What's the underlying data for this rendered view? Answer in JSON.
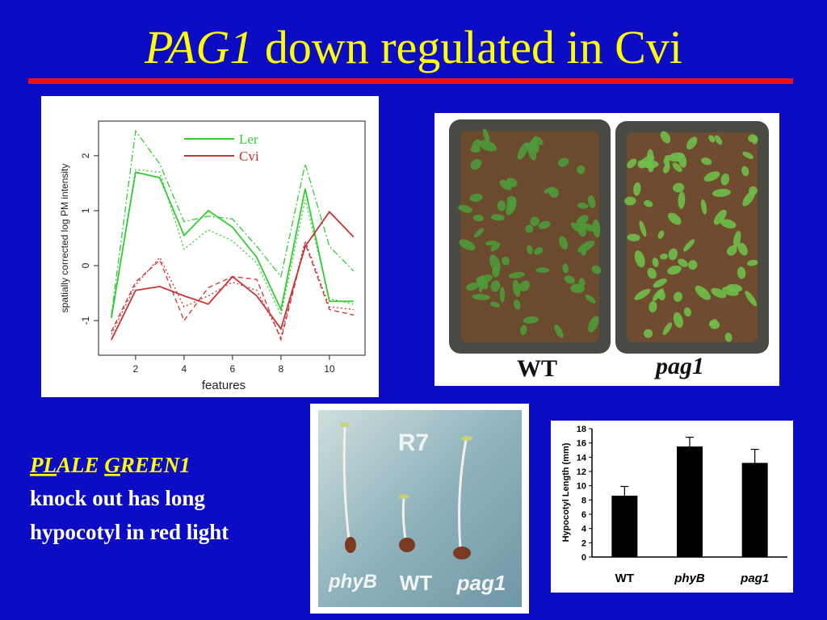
{
  "slide": {
    "title_italic": "PAG1",
    "title_rest": "down regulated in Cvi",
    "note_first_line": [
      {
        "text": "PL",
        "underline": true
      },
      {
        "text": "ALE ",
        "underline": false
      },
      {
        "text": "G",
        "underline": true
      },
      {
        "text": "REEN1",
        "underline": false
      }
    ],
    "note_lines": [
      "knock out has long",
      "hypocotyl in red light"
    ]
  },
  "photos": [
    {
      "labels": [
        {
          "text": "WT",
          "italic": false
        },
        {
          "text": "pag1",
          "italic": true
        }
      ]
    },
    {
      "labels": [
        {
          "text": "R7",
          "italic": false
        },
        {
          "text": "phyB",
          "italic": true
        },
        {
          "text": "WT",
          "italic": false
        },
        {
          "text": "pag1",
          "italic": true
        }
      ]
    }
  ],
  "chart_data": [
    {
      "type": "line",
      "x_label": "features",
      "y_label": "spatially corrected log PM intensity",
      "x": [
        1,
        2,
        3,
        4,
        5,
        6,
        7,
        8,
        9,
        10,
        11
      ],
      "xlim": [
        0.47,
        11.47
      ],
      "ylim": [
        -1.63,
        2.63
      ],
      "xticks": [
        2,
        4,
        6,
        8,
        10
      ],
      "yticks": [
        -1,
        0,
        1,
        2
      ],
      "series": [
        {
          "name": "Ler",
          "color": "#33cc33",
          "lines": [
            {
              "dash": "solid",
              "values": [
                -0.95,
                1.7,
                1.6,
                0.55,
                1.0,
                0.7,
                0.15,
                -0.8,
                1.4,
                -0.65,
                -0.65
              ]
            },
            {
              "dash": "dashdot",
              "values": [
                -0.9,
                2.45,
                1.85,
                0.8,
                0.9,
                0.85,
                0.35,
                -0.2,
                1.85,
                0.35,
                -0.1
              ]
            },
            {
              "dash": "dotted",
              "values": [
                -0.95,
                1.75,
                1.7,
                0.3,
                0.65,
                0.45,
                0.05,
                -0.9,
                1.2,
                -0.6,
                -0.7
              ]
            }
          ]
        },
        {
          "name": "Cvi",
          "color": "#cc3333",
          "lines": [
            {
              "dash": "solid",
              "values": [
                -1.35,
                -0.45,
                -0.38,
                -0.55,
                -0.7,
                -0.2,
                -0.55,
                -1.15,
                0.35,
                0.98,
                0.52
              ]
            },
            {
              "dash": "dashed",
              "values": [
                -1.2,
                -0.3,
                0.1,
                -1.0,
                -0.4,
                -0.2,
                -0.25,
                -1.35,
                0.4,
                -0.8,
                -0.9
              ]
            },
            {
              "dash": "dotted",
              "values": [
                -1.25,
                -0.35,
                0.15,
                -0.75,
                -0.55,
                -0.3,
                -0.45,
                -1.3,
                0.45,
                -0.75,
                -0.8
              ]
            }
          ]
        }
      ]
    },
    {
      "type": "bar",
      "y_label": "Hypocotyl Length (mm)",
      "categories": [
        {
          "text": "WT",
          "italic": false
        },
        {
          "text": "phyB",
          "italic": true
        },
        {
          "text": "pag1",
          "italic": true
        }
      ],
      "values": [
        8.6,
        15.5,
        13.2
      ],
      "errors": [
        1.3,
        1.3,
        1.9
      ],
      "color": "#000000",
      "ylim": [
        0,
        18
      ],
      "yticks": [
        0,
        2,
        4,
        6,
        8,
        10,
        12,
        14,
        16,
        18
      ]
    }
  ]
}
